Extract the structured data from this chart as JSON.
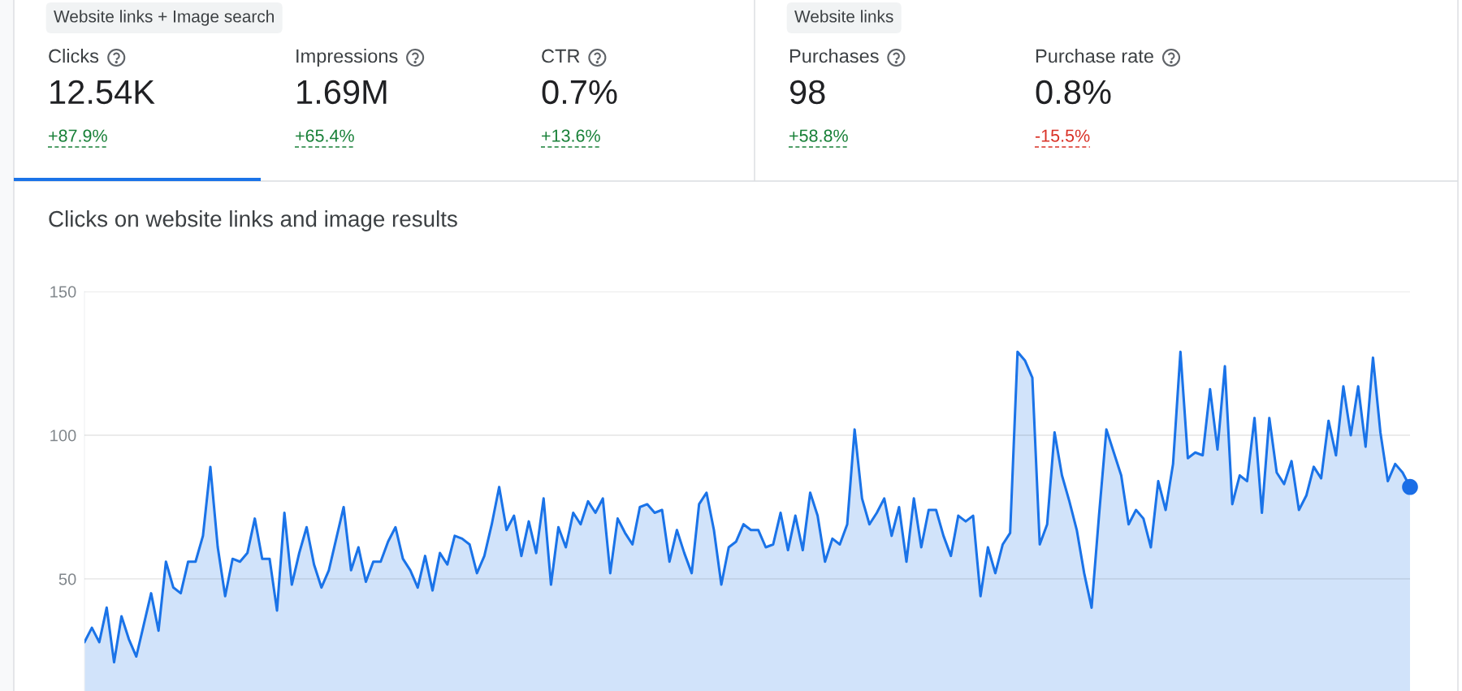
{
  "chart_data": [
    {
      "type": "other",
      "annotations": [
        "Website links + Image search",
        "Clicks",
        "12.54K",
        "+87.9%",
        "Impressions",
        "1.69M",
        "+65.4%",
        "CTR",
        "0.7%",
        "+13.6%",
        "Website links",
        "Purchases",
        "98",
        "+58.8%",
        "Purchase rate",
        "0.8%",
        "-15.5%"
      ],
      "colors": [
        "#3c4043",
        "#3c4043",
        "#202124",
        "#188038",
        "#3c4043",
        "#202124",
        "#188038",
        "#3c4043",
        "#202124",
        "#188038",
        "#3c4043",
        "#3c4043",
        "#202124",
        "#188038",
        "#3c4043",
        "#202124",
        "#d93025"
      ]
    },
    {
      "type": "area",
      "title": "Clicks on website links and image results",
      "categories": [
        null,
        null,
        null,
        null,
        null,
        null,
        null,
        null,
        null,
        null,
        null,
        null,
        null,
        null,
        null,
        null,
        null,
        null,
        null,
        null,
        null,
        null,
        null,
        null,
        null,
        null,
        null,
        null,
        null,
        null,
        null,
        null,
        null,
        null,
        null,
        null,
        null,
        null,
        null,
        null,
        null,
        null,
        null,
        null,
        null,
        null,
        null,
        null,
        null,
        null,
        null,
        null,
        null,
        null,
        null,
        null,
        null,
        null,
        null,
        null,
        null,
        null,
        null,
        null,
        null,
        null,
        null,
        null,
        null,
        null,
        null,
        null,
        null,
        null,
        null,
        null,
        null,
        null,
        null,
        null,
        null,
        null,
        null,
        null,
        null,
        null,
        null,
        null,
        null,
        null,
        null,
        null,
        null,
        null,
        null,
        null,
        null,
        null,
        null,
        null,
        null,
        null,
        null,
        null,
        null,
        null,
        null,
        null,
        null,
        null,
        null,
        null,
        null,
        null,
        null,
        null,
        null,
        null,
        null,
        null,
        null,
        null,
        null,
        null,
        null,
        null,
        null,
        null,
        null,
        null,
        null,
        null,
        null,
        null,
        null,
        null,
        null,
        null,
        null,
        null,
        null,
        null,
        null,
        null,
        null,
        null,
        null,
        null,
        null,
        null,
        null,
        null,
        null,
        null,
        null,
        null,
        null,
        null,
        null,
        null,
        null,
        null,
        null,
        null,
        null,
        null,
        null,
        null,
        null,
        null,
        null,
        null,
        null,
        null,
        null,
        null,
        null,
        null,
        null,
        null
      ],
      "series": [
        {
          "type": "area",
          "color": "#1a73e8",
          "values": [
            28,
            33,
            28,
            40,
            21,
            37,
            29,
            23,
            34,
            45,
            32,
            56,
            47,
            45,
            56,
            56,
            65,
            89,
            61,
            44,
            57,
            56,
            59,
            71,
            57,
            57,
            39,
            73,
            48,
            59,
            68,
            55,
            47,
            53,
            64,
            75,
            53,
            61,
            49,
            56,
            56,
            63,
            68,
            57,
            53,
            47,
            58,
            46,
            59,
            55,
            65,
            64,
            62,
            52,
            58,
            69,
            82,
            67,
            72,
            58,
            70,
            59,
            78,
            48,
            68,
            61,
            73,
            69,
            77,
            73,
            78,
            52,
            71,
            66,
            62,
            75,
            76,
            73,
            74,
            56,
            67,
            59,
            52,
            76,
            80,
            67,
            48,
            61,
            63,
            69,
            67,
            67,
            61,
            62,
            73,
            60,
            72,
            60,
            80,
            72,
            56,
            64,
            62,
            69,
            102,
            78,
            69,
            73,
            78,
            65,
            75,
            56,
            78,
            61,
            74,
            74,
            65,
            58,
            72,
            70,
            72,
            44,
            61,
            52,
            62,
            66,
            129,
            126,
            120,
            62,
            69,
            101,
            86,
            77,
            67,
            52,
            40,
            72,
            102,
            94,
            86,
            69,
            74,
            71,
            61,
            84,
            74,
            90,
            129,
            92,
            94,
            93,
            116,
            95,
            124,
            76,
            86,
            84,
            106,
            73,
            106,
            87,
            83,
            91,
            74,
            79,
            89,
            85,
            105,
            93,
            117,
            100,
            117,
            96,
            127,
            101,
            84,
            90,
            87,
            82
          ]
        },
        {
          "type": "scatter",
          "color": "#1b6ee6",
          "marker": "circle",
          "values": [
            null,
            null,
            null,
            null,
            null,
            null,
            null,
            null,
            null,
            null,
            null,
            null,
            null,
            null,
            null,
            null,
            null,
            null,
            null,
            null,
            null,
            null,
            null,
            null,
            null,
            null,
            null,
            null,
            null,
            null,
            null,
            null,
            null,
            null,
            null,
            null,
            null,
            null,
            null,
            null,
            null,
            null,
            null,
            null,
            null,
            null,
            null,
            null,
            null,
            null,
            null,
            null,
            null,
            null,
            null,
            null,
            null,
            null,
            null,
            null,
            null,
            null,
            null,
            null,
            null,
            null,
            null,
            null,
            null,
            null,
            null,
            null,
            null,
            null,
            null,
            null,
            null,
            null,
            null,
            null,
            null,
            null,
            null,
            null,
            null,
            null,
            null,
            null,
            null,
            null,
            null,
            null,
            null,
            null,
            null,
            null,
            null,
            null,
            null,
            null,
            null,
            null,
            null,
            null,
            null,
            null,
            null,
            null,
            null,
            null,
            null,
            null,
            null,
            null,
            null,
            null,
            null,
            null,
            null,
            null,
            null,
            null,
            null,
            null,
            null,
            null,
            null,
            null,
            null,
            null,
            null,
            null,
            null,
            null,
            null,
            null,
            null,
            null,
            null,
            null,
            null,
            null,
            null,
            null,
            null,
            null,
            null,
            null,
            null,
            null,
            null,
            null,
            null,
            null,
            null,
            null,
            null,
            null,
            null,
            null,
            null,
            null,
            null,
            null,
            null,
            null,
            null,
            null,
            null,
            null,
            null,
            null,
            null,
            null,
            null,
            null,
            null,
            null,
            null,
            82
          ]
        }
      ],
      "ylim": [
        11,
        150
      ],
      "yticks": [
        50,
        100,
        150
      ],
      "grid": "y",
      "tick_labels": "y"
    }
  ]
}
